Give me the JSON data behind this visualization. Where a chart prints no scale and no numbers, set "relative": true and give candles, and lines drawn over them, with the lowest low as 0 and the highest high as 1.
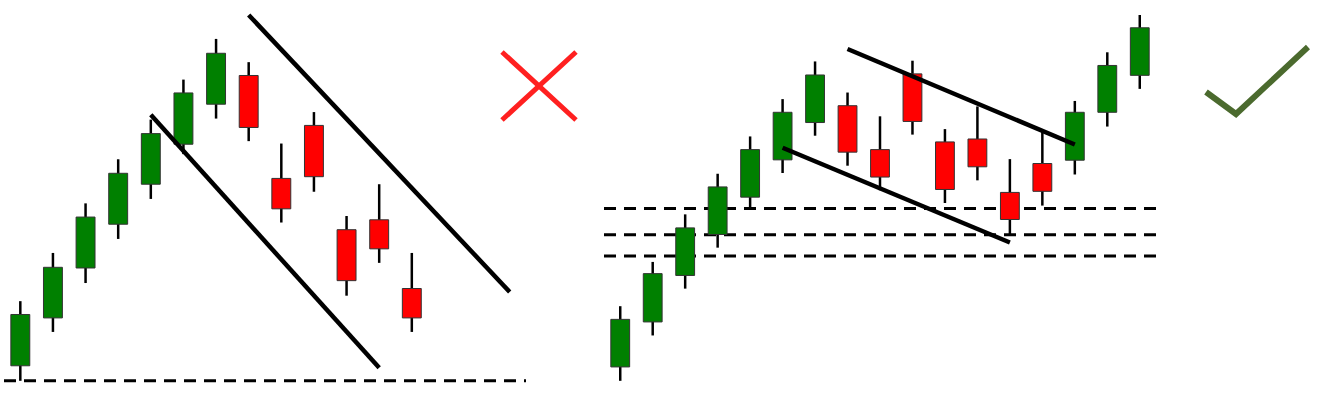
{
  "chart_data": [
    {
      "type": "candlestick",
      "relative": true,
      "marker": "none",
      "categories": [
        null,
        null,
        null,
        null,
        null,
        null,
        null,
        null,
        null,
        null,
        null,
        null,
        null,
        null,
        null,
        null
      ],
      "ohlc": [
        [
          0.044,
          0.233,
          0,
          0.194
        ],
        [
          0.184,
          0.374,
          0.143,
          0.332
        ],
        [
          0.33,
          0.519,
          0.286,
          0.479
        ],
        [
          0.458,
          0.648,
          0.415,
          0.607
        ],
        [
          0.575,
          0.764,
          0.532,
          0.723
        ],
        [
          0.692,
          0.881,
          0.663,
          0.842
        ],
        [
          0.809,
          1,
          0.767,
          0.958
        ],
        [
          0.893,
          0.932,
          0.701,
          0.741
        ],
        [
          0.592,
          0.694,
          0.463,
          0.503
        ],
        [
          0.747,
          0.786,
          0.553,
          0.597
        ],
        [
          0.442,
          0.482,
          0.249,
          0.293
        ],
        [
          0.471,
          0.575,
          0.345,
          0.386
        ],
        [
          0.27,
          0.374,
          0.143,
          0.184
        ],
        null,
        null,
        null
      ],
      "colors": [
        "#008000",
        "#008000",
        "#008000",
        "#008000",
        "#008000",
        "#008000",
        "#008000",
        "#ff0000",
        "#ff0000",
        "#ff0000",
        "#ff0000",
        "#ff0000",
        "#ff0000",
        null,
        null,
        null
      ],
      "series": [
        {
          "type": "line",
          "color": "#000000",
          "values": [
            null,
            null,
            null,
            null,
            0.778,
            null,
            null,
            null,
            null,
            null,
            null,
            0.038,
            null,
            null,
            null,
            null
          ]
        },
        {
          "type": "line",
          "color": "#000000",
          "values": [
            null,
            null,
            null,
            null,
            null,
            null,
            null,
            1.07,
            null,
            null,
            null,
            null,
            null,
            null,
            null,
            0.26
          ]
        }
      ],
      "ref_lines": [
        {
          "axis": "y",
          "value": 0,
          "color": "#000000",
          "line_style": "dashed"
        }
      ]
    },
    {
      "type": "candlestick",
      "relative": true,
      "marker": "none",
      "categories": [
        null,
        null,
        null,
        null,
        null,
        null,
        null,
        null,
        null,
        null,
        null,
        null,
        null,
        null,
        null,
        null,
        null
      ],
      "ohlc": [
        [
          0.038,
          0.204,
          0,
          0.168
        ],
        [
          0.161,
          0.325,
          0.124,
          0.293
        ],
        [
          0.288,
          0.455,
          0.252,
          0.418
        ],
        [
          0.4,
          0.566,
          0.364,
          0.53
        ],
        [
          0.502,
          0.668,
          0.468,
          0.632
        ],
        [
          0.604,
          0.77,
          0.568,
          0.734
        ],
        [
          0.706,
          0.873,
          0.67,
          0.836
        ],
        [
          0.752,
          0.788,
          0.588,
          0.625
        ],
        [
          0.632,
          0.723,
          0.521,
          0.557
        ],
        [
          0.839,
          0.875,
          0.673,
          0.709
        ],
        [
          0.653,
          0.688,
          0.486,
          0.523
        ],
        [
          0.661,
          0.75,
          0.548,
          0.585
        ],
        [
          0.515,
          0.606,
          0.4,
          0.441
        ],
        [
          0.594,
          0.684,
          0.479,
          0.518
        ],
        [
          0.603,
          0.765,
          0.564,
          0.734
        ],
        [
          0.734,
          0.898,
          0.695,
          0.862
        ],
        [
          0.835,
          1,
          0.798,
          0.965
        ]
      ],
      "colors": [
        "#008000",
        "#008000",
        "#008000",
        "#008000",
        "#008000",
        "#008000",
        "#008000",
        "#ff0000",
        "#ff0000",
        "#ff0000",
        "#ff0000",
        "#ff0000",
        "#ff0000",
        "#ff0000",
        "#008000",
        "#008000",
        "#008000"
      ],
      "series": [
        {
          "type": "line",
          "color": "#000000",
          "values": [
            null,
            null,
            null,
            null,
            null,
            null,
            null,
            0.907,
            null,
            null,
            null,
            null,
            null,
            null,
            0.646,
            null,
            null
          ]
        },
        {
          "type": "line",
          "color": "#000000",
          "values": [
            null,
            null,
            null,
            null,
            null,
            0.637,
            null,
            null,
            null,
            null,
            null,
            null,
            0.378,
            null,
            null,
            null,
            null
          ]
        }
      ],
      "ref_lines": [
        {
          "axis": "y",
          "value": 0.471,
          "color": "#000000",
          "line_style": "dashed"
        },
        {
          "axis": "y",
          "value": 0.399,
          "color": "#000000",
          "line_style": "dashed"
        },
        {
          "axis": "y",
          "value": 0.341,
          "color": "#000000",
          "line_style": "dashed"
        }
      ]
    }
  ]
}
